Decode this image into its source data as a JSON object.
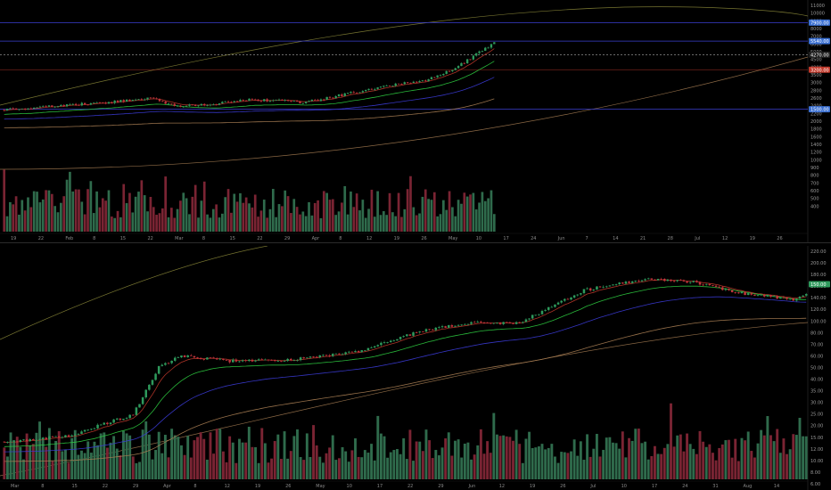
{
  "colors": {
    "background": "#000000",
    "up": "#2e9a5c",
    "down": "#c1343c",
    "volume_up": "#2f6b4c",
    "volume_down": "#7a2433",
    "ema_fast": "#c0392b",
    "ema_mid": "#2ecc40",
    "ema_slow": "#3b3bd6",
    "ma_long": "#a67c52",
    "curve": "#8c8a3a",
    "hline_blue": "#3a3fd1",
    "hline_dotted": "#aaaaaa",
    "hline_red": "#c0392b"
  },
  "top_pane": {
    "x_ticks": [
      "19",
      "22",
      "Feb",
      "8",
      "15",
      "22",
      "Mar",
      "8",
      "15",
      "22",
      "29",
      "Apr",
      "8",
      "12",
      "19",
      "26",
      "May",
      "10",
      "17",
      "24",
      "Jun",
      "7",
      "14",
      "21",
      "28",
      "Jul",
      "12",
      "19",
      "26"
    ],
    "price_ticks": [
      "11000",
      "10000",
      "9000",
      "8000",
      "7000",
      "6000",
      "5000",
      "4500",
      "4000",
      "3500",
      "3000",
      "2800",
      "2600",
      "2400",
      "2200",
      "2000",
      "1800",
      "1600",
      "1400",
      "1200",
      "1000",
      "900",
      "800",
      "700",
      "600",
      "500",
      "400"
    ],
    "tags": [
      {
        "text": "7900.00",
        "color": "#3a6fd1"
      },
      {
        "text": "5540.00",
        "color": "#3a6fd1"
      },
      {
        "text": "4270.00",
        "color": "#222222"
      },
      {
        "text": "3200.00",
        "color": "#c0392b"
      },
      {
        "text": "1500.00",
        "color": "#3a6fd1"
      }
    ]
  },
  "bottom_pane": {
    "x_ticks": [
      "Mar",
      "8",
      "15",
      "22",
      "29",
      "Apr",
      "8",
      "12",
      "19",
      "26",
      "May",
      "10",
      "17",
      "22",
      "29",
      "Jun",
      "12",
      "19",
      "26",
      "Jul",
      "10",
      "17",
      "24",
      "31",
      "Aug",
      "14"
    ],
    "price_ticks": [
      "220.00",
      "200.00",
      "180.00",
      "160.00",
      "140.00",
      "120.00",
      "100.00",
      "80.00",
      "70.00",
      "60.00",
      "50.00",
      "40.00",
      "35.00",
      "30.00",
      "25.00",
      "20.00",
      "15.00",
      "12.00",
      "10.00",
      "8.00",
      "6.00"
    ],
    "tag": {
      "text": "150.00",
      "color": "#2e9a5c"
    }
  },
  "chart_data": [
    {
      "type": "candlestick",
      "pane": "top",
      "y_scale": "log",
      "ylim": [
        400,
        11000
      ],
      "n_candles": 165,
      "trend_points": [
        [
          0,
          1480
        ],
        [
          20,
          1620
        ],
        [
          35,
          1720
        ],
        [
          50,
          1850
        ],
        [
          55,
          1640
        ],
        [
          60,
          1600
        ],
        [
          70,
          1660
        ],
        [
          80,
          1800
        ],
        [
          95,
          1760
        ],
        [
          100,
          1700
        ],
        [
          110,
          1900
        ],
        [
          120,
          2150
        ],
        [
          130,
          2400
        ],
        [
          140,
          2550
        ],
        [
          150,
          3200
        ],
        [
          158,
          4300
        ],
        [
          165,
          5600
        ]
      ],
      "horizontal_lines": [
        7900,
        5540,
        4270,
        3200,
        1500
      ],
      "volume_note": "volume histogram at bottom of pane"
    },
    {
      "type": "candlestick",
      "pane": "bottom",
      "y_scale": "log",
      "ylim": [
        6,
        220
      ],
      "n_candles": 250,
      "trend_points": [
        [
          0,
          8.2
        ],
        [
          20,
          9
        ],
        [
          30,
          11
        ],
        [
          40,
          13
        ],
        [
          48,
          30
        ],
        [
          55,
          36
        ],
        [
          70,
          33
        ],
        [
          90,
          34
        ],
        [
          110,
          39
        ],
        [
          130,
          56
        ],
        [
          145,
          64
        ],
        [
          160,
          64
        ],
        [
          180,
          112
        ],
        [
          200,
          138
        ],
        [
          215,
          128
        ],
        [
          230,
          105
        ],
        [
          245,
          96
        ],
        [
          255,
          118
        ],
        [
          265,
          120
        ],
        [
          280,
          130
        ],
        [
          300,
          140
        ]
      ],
      "volume_note": "volume histogram at bottom of pane"
    }
  ]
}
